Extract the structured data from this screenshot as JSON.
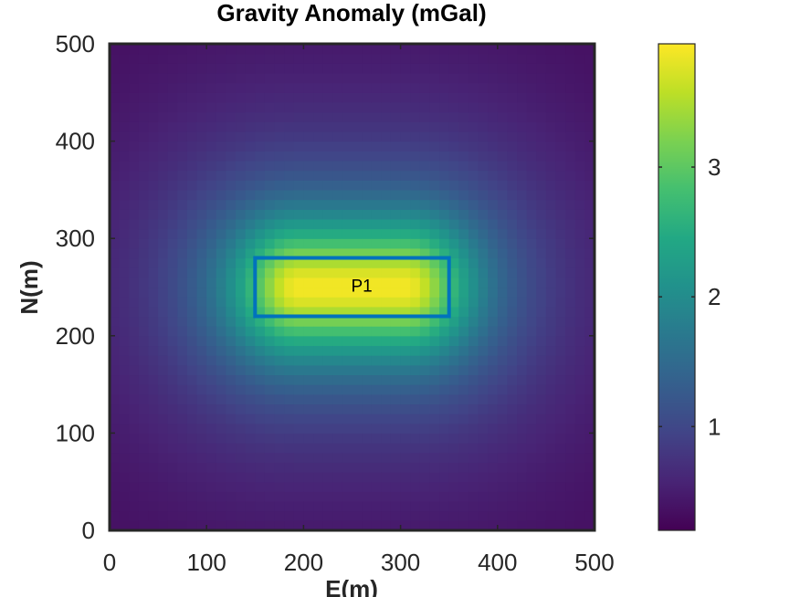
{
  "chart_data": {
    "type": "heatmap",
    "title": "Gravity Anomaly (mGal)",
    "xlabel": "E(m)",
    "ylabel": "N(m)",
    "xlim": [
      0,
      500
    ],
    "ylim": [
      0,
      500
    ],
    "x_ticks": [
      0,
      100,
      200,
      300,
      400,
      500
    ],
    "y_ticks": [
      0,
      100,
      200,
      300,
      400,
      500
    ],
    "colormap": "viridis",
    "colorbar": {
      "min": 0.2,
      "max": 3.95,
      "ticks": [
        1,
        2,
        3
      ]
    },
    "grid": false,
    "field": {
      "peak_value": 3.9,
      "peak_center": [
        250,
        250
      ],
      "base_value": 0.2
    },
    "bodies": [
      {
        "label": "P1",
        "x_range": [
          150,
          350
        ],
        "y_range": [
          220,
          280
        ],
        "outline_color": "#0072BD"
      }
    ],
    "annotations": [
      {
        "text": "P1",
        "x": 260,
        "y": 250
      }
    ]
  }
}
